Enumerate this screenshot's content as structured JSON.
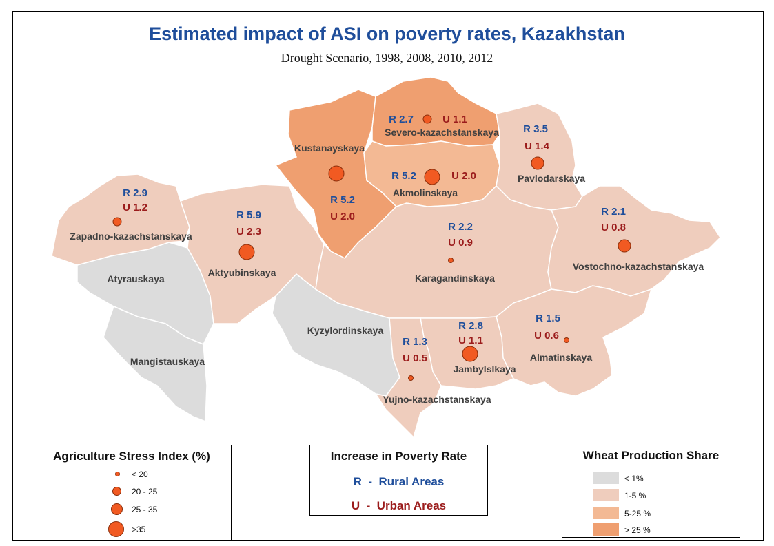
{
  "title": "Estimated impact of ASI on poverty rates, Kazakhstan",
  "subtitle": "Drought Scenario, 1998, 2008, 2010, 2012",
  "colors": {
    "lt1": "#dcdcdc",
    "c1to5": "#efcdbd",
    "c5to25": "#f3b994",
    "gt25": "#ef9f70",
    "circle": "#f15a22",
    "rural": "#1f4e9b",
    "urban": "#9b1c1c"
  },
  "regions": [
    {
      "name": "Kustanayskaya",
      "share": "gt25",
      "rural": "R 5.2",
      "urban": "U 2.0"
    },
    {
      "name": "Severo-kazachstanskaya",
      "share": "gt25",
      "rural": "R 2.7",
      "urban": "U 1.1"
    },
    {
      "name": "Akmolinskaya",
      "share": "c5to25",
      "rural": "R 5.2",
      "urban": "U 2.0"
    },
    {
      "name": "Pavlodarskaya",
      "share": "c1to5",
      "rural": "R 3.5",
      "urban": "U 1.4"
    },
    {
      "name": "Zapadno-kazachstanskaya",
      "share": "c1to5",
      "rural": "R 2.9",
      "urban": "U 1.2"
    },
    {
      "name": "Aktyubinskaya",
      "share": "c1to5",
      "rural": "R 5.9",
      "urban": "U 2.3"
    },
    {
      "name": "Karagandinskaya",
      "share": "c1to5",
      "rural": "R 2.2",
      "urban": "U 0.9"
    },
    {
      "name": "Vostochno-kazachstanskaya",
      "share": "c1to5",
      "rural": "R 2.1",
      "urban": "U 0.8"
    },
    {
      "name": "Atyrauskaya",
      "share": "lt1",
      "rural": "",
      "urban": ""
    },
    {
      "name": "Mangistauskaya",
      "share": "lt1",
      "rural": "",
      "urban": ""
    },
    {
      "name": "Kyzylordinskaya",
      "share": "lt1",
      "rural": "",
      "urban": ""
    },
    {
      "name": "Yujno-kazachstanskaya",
      "share": "c1to5",
      "rural": "R 1.3",
      "urban": "U 0.5"
    },
    {
      "name": "Jambylslkaya",
      "share": "c1to5",
      "rural": "R 2.8",
      "urban": "U 1.1"
    },
    {
      "name": "Almatinskaya",
      "share": "c1to5",
      "rural": "R 1.5",
      "urban": "U 0.6"
    }
  ],
  "legend_asi": {
    "title": "Agriculture Stress Index (%)",
    "items": [
      "< 20",
      "20 - 25",
      "25 - 35",
      ">35"
    ]
  },
  "legend_poverty": {
    "title": "Increase in Poverty Rate",
    "rural": "R  -  Rural Areas",
    "urban": "U  -  Urban Areas"
  },
  "legend_wheat": {
    "title": "Wheat Production Share",
    "items": [
      {
        "label": "< 1%",
        "color": "#dcdcdc"
      },
      {
        "label": "1-5 %",
        "color": "#efcdbd"
      },
      {
        "label": "5-25 %",
        "color": "#f3b994"
      },
      {
        "label": "> 25 %",
        "color": "#ef9f70"
      }
    ]
  }
}
